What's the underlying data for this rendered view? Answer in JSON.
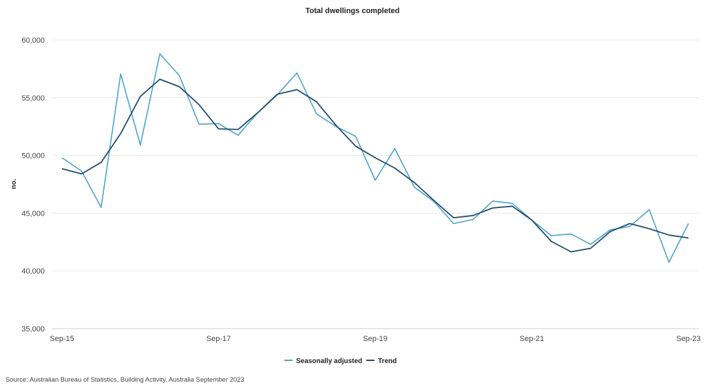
{
  "chart_data": {
    "type": "line",
    "title": "Total dwellings completed",
    "xlabel": "",
    "ylabel": "no.",
    "ylim": [
      35000,
      60000
    ],
    "yticks": [
      35000,
      40000,
      45000,
      50000,
      55000,
      60000
    ],
    "ytick_labels": [
      "35,000",
      "40,000",
      "45,000",
      "50,000",
      "55,000",
      "60,000"
    ],
    "x": [
      "Sep-15",
      "Dec-15",
      "Mar-16",
      "Jun-16",
      "Sep-16",
      "Dec-16",
      "Mar-17",
      "Jun-17",
      "Sep-17",
      "Dec-17",
      "Mar-18",
      "Jun-18",
      "Sep-18",
      "Dec-18",
      "Mar-19",
      "Jun-19",
      "Sep-19",
      "Dec-19",
      "Mar-20",
      "Jun-20",
      "Sep-20",
      "Dec-20",
      "Mar-21",
      "Jun-21",
      "Sep-21",
      "Dec-21",
      "Mar-22",
      "Jun-22",
      "Sep-22",
      "Dec-22",
      "Mar-23",
      "Jun-23",
      "Sep-23"
    ],
    "xtick_labels": [
      "Sep-15",
      "Sep-17",
      "Sep-19",
      "Sep-21",
      "Sep-23"
    ],
    "grid": true,
    "legend_position": "bottom-center",
    "series": [
      {
        "name": "Seasonally adjusted",
        "color": "#4aa3cc",
        "values": [
          49800,
          48650,
          45500,
          57050,
          50900,
          58800,
          56900,
          52700,
          52750,
          51750,
          53700,
          55250,
          57150,
          53600,
          52500,
          51650,
          47850,
          50600,
          47250,
          46000,
          44100,
          44450,
          46050,
          45850,
          44400,
          43050,
          43200,
          42300,
          43550,
          43850,
          45300,
          40750,
          44100
        ]
      },
      {
        "name": "Trend",
        "color": "#1f4e6e",
        "values": [
          48850,
          48400,
          49400,
          51900,
          55100,
          56600,
          55950,
          54400,
          52300,
          52250,
          53700,
          55300,
          55700,
          54650,
          52600,
          50800,
          49800,
          48900,
          47650,
          46100,
          44600,
          44800,
          45450,
          45600,
          44400,
          42550,
          41650,
          41950,
          43400,
          44100,
          43650,
          43100,
          42850
        ]
      }
    ]
  },
  "source": "Source: Australian Bureau of Statistics, Building Activity, Australia September 2023"
}
